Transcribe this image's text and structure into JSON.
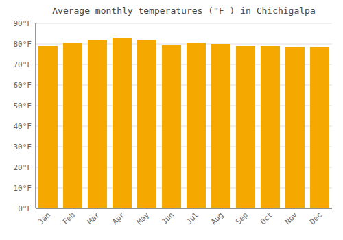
{
  "chart_data": {
    "type": "bar",
    "title": "Average monthly temperatures (°F ) in Chichigalpa",
    "categories": [
      "Jan",
      "Feb",
      "Mar",
      "Apr",
      "May",
      "Jun",
      "Jul",
      "Aug",
      "Sep",
      "Oct",
      "Nov",
      "Dec"
    ],
    "values": [
      79,
      80.5,
      82,
      83,
      82,
      79.5,
      80.5,
      80,
      79,
      79,
      78.5,
      78.5
    ],
    "color": "#F5A800",
    "ylim": [
      0,
      90
    ],
    "yticks": [
      {
        "value": 0,
        "label": "0°F"
      },
      {
        "value": 10,
        "label": "10°F"
      },
      {
        "value": 20,
        "label": "20°F"
      },
      {
        "value": 30,
        "label": "30°F"
      },
      {
        "value": 40,
        "label": "40°F"
      },
      {
        "value": 50,
        "label": "50°F"
      },
      {
        "value": 60,
        "label": "60°F"
      },
      {
        "value": 70,
        "label": "70°F"
      },
      {
        "value": 80,
        "label": "80°F"
      },
      {
        "value": 90,
        "label": "90°F"
      }
    ],
    "grid": true
  }
}
